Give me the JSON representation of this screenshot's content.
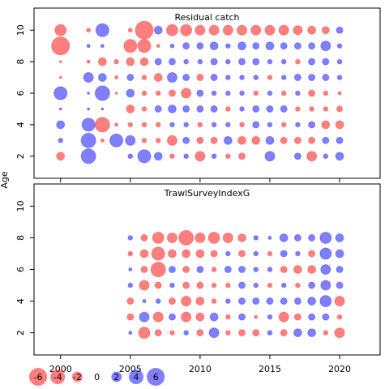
{
  "ylabel": "Age",
  "legend": {
    "values": [
      -6,
      -4,
      -2,
      0,
      2,
      4,
      6
    ]
  },
  "chart_data": [
    {
      "type": "bubble",
      "title": "Residual catch",
      "neg_color": "#ff0000",
      "pos_color": "#0000ff",
      "xticklabels": false,
      "x": [
        2000,
        2001,
        2002,
        2003,
        2004,
        2005,
        2006,
        2007,
        2008,
        2009,
        2010,
        2011,
        2012,
        2013,
        2014,
        2015,
        2016,
        2017,
        2018,
        2019,
        2020
      ],
      "y": [
        10,
        9,
        8,
        7,
        6,
        5,
        4,
        3,
        2
      ],
      "values": [
        [
          -2.4,
          null,
          -0.3,
          3.2,
          null,
          -0.3,
          -6,
          1.2,
          -2.4,
          -2.4,
          -1.8,
          -1.8,
          -1.8,
          -1.8,
          -1.8,
          -1.8,
          -1.8,
          -1.5,
          -1.2,
          -1,
          0.8
        ],
        [
          -6,
          null,
          0.2,
          0.2,
          null,
          -3.2,
          -3.2,
          -0.2,
          0.3,
          0.8,
          0.8,
          1.2,
          0.4,
          1.2,
          0.8,
          1.2,
          0.8,
          0.8,
          0.8,
          1.8,
          0.4
        ],
        [
          -0.1,
          null,
          -0.2,
          -1.2,
          -0.4,
          -1.2,
          -1.2,
          0.8,
          0.8,
          0.4,
          0.4,
          0.8,
          0.4,
          0.8,
          0.8,
          0.4,
          0.4,
          -0.4,
          0.8,
          0.8,
          0.4
        ],
        [
          -0.1,
          null,
          1.8,
          1.2,
          -0.2,
          0.8,
          -0.4,
          -1.2,
          1.8,
          0.8,
          -0.8,
          0.8,
          0.4,
          0.4,
          0.4,
          -0.4,
          0.4,
          0.8,
          0.8,
          0.8,
          0.4
        ],
        [
          3.2,
          null,
          0.1,
          4,
          -0.1,
          1.2,
          -0.4,
          -0.4,
          -0.8,
          -1.8,
          0.8,
          0.4,
          0.4,
          0.4,
          -0.4,
          0.4,
          -0.4,
          0.4,
          -0.8,
          -0.4,
          -0.2
        ],
        [
          0.1,
          null,
          0.1,
          0.1,
          null,
          -1.2,
          -0.4,
          0.8,
          1.2,
          0.8,
          0.8,
          0.8,
          -0.4,
          0.4,
          0.8,
          0.8,
          0.8,
          -0.4,
          -0.4,
          -0.4,
          -0.6
        ],
        [
          1.2,
          null,
          3.2,
          -4,
          -0.2,
          -0.4,
          -0.4,
          -0.4,
          0.4,
          0.4,
          -0.4,
          0.4,
          0.4,
          -0.4,
          0.8,
          0.4,
          -0.4,
          0.4,
          0.8,
          -1.2,
          -1.2
        ],
        [
          0.4,
          null,
          4,
          -0.2,
          3.2,
          1.8,
          -0.4,
          -0.4,
          -1.8,
          0.8,
          -0.8,
          -0.8,
          1.2,
          -1.2,
          -1.2,
          1.2,
          -0.8,
          -0.8,
          -0.8,
          0.8,
          0.8
        ],
        [
          -1.2,
          null,
          4,
          null,
          null,
          0.4,
          3.2,
          1.2,
          -0.4,
          0.4,
          -1.8,
          0.4,
          -0.4,
          -0.8,
          null,
          1.8,
          null,
          0.8,
          -1.8,
          0.4,
          1.2
        ]
      ],
      "xlim": [
        1998.1,
        2022.9
      ],
      "ylim": [
        0.6,
        11.4
      ],
      "xticks": [
        2000,
        2005,
        2010,
        2015,
        2020
      ],
      "yticks": [
        2,
        4,
        6,
        8,
        10
      ]
    },
    {
      "type": "bubble",
      "title": "TrawlSurveyIndexG",
      "neg_color": "#ff0000",
      "pos_color": "#0000ff",
      "xticklabels": true,
      "x": [
        2005,
        2006,
        2007,
        2008,
        2009,
        2010,
        2011,
        2012,
        2013,
        2014,
        2015,
        2016,
        2017,
        2018,
        2019,
        2020
      ],
      "y": [
        8,
        7,
        6,
        5,
        4,
        3,
        2
      ],
      "values": [
        [
          0.4,
          -0.8,
          -2.4,
          -1.8,
          -4,
          -1.8,
          -2.4,
          -1.8,
          -1.2,
          0.4,
          0.2,
          1.2,
          0.8,
          0.8,
          2.4,
          1.2
        ],
        [
          -0.4,
          -1.2,
          -3.2,
          -1.2,
          -1.2,
          -1.2,
          -0.8,
          0.4,
          -0.8,
          0.4,
          -0.4,
          0.8,
          0.4,
          -0.8,
          2.4,
          1.2
        ],
        [
          0.2,
          -0.8,
          -4,
          0.8,
          -0.8,
          0.8,
          -0.4,
          0.8,
          0.8,
          0.4,
          0.4,
          -0.8,
          -1.2,
          -1.2,
          1.8,
          0.8
        ],
        [
          0.4,
          -1.8,
          -0.8,
          0.4,
          -0.8,
          -0.8,
          -0.4,
          -0.4,
          0.8,
          0.4,
          -0.4,
          0.4,
          -0.4,
          0.8,
          1.8,
          0.8
        ],
        [
          -0.8,
          0.2,
          0.4,
          -0.8,
          -1.8,
          -1.2,
          -0.4,
          0.4,
          0.8,
          0.8,
          0.8,
          0.8,
          0.8,
          1.2,
          2.4,
          -1.8
        ],
        [
          -0.8,
          1.8,
          -1.8,
          0.8,
          -1.8,
          -1.2,
          1.2,
          -0.4,
          0.8,
          -0.2,
          0.4,
          -1.8,
          -0.8,
          0.8,
          0.8,
          -0.4
        ],
        [
          0.2,
          -2.4,
          -0.8,
          -0.4,
          0.4,
          -0.8,
          1.8,
          -0.4,
          -0.8,
          -0.8,
          0.4,
          -0.8,
          1.2,
          1.2,
          -0.4,
          -1.8
        ]
      ],
      "xlim": [
        1998.1,
        2022.9
      ],
      "ylim": [
        0.6,
        11.4
      ],
      "xticks": [
        2000,
        2005,
        2010,
        2015,
        2020
      ],
      "yticks": [
        2,
        4,
        6,
        8,
        10
      ]
    }
  ]
}
